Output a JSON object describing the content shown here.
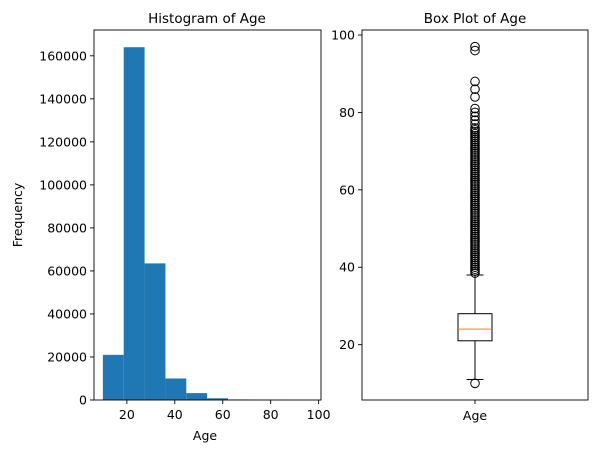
{
  "colors": {
    "bar": "#1f77b4",
    "median": "#ff7f0e",
    "axis": "#000000",
    "outlier": "#000000"
  },
  "chart_data": [
    {
      "type": "bar",
      "title": "Histogram of Age",
      "xlabel": "Age",
      "ylabel": "Frequency",
      "xlim": [
        6.3,
        101.0
      ],
      "ylim": [
        0,
        172000
      ],
      "xticks": [
        20,
        40,
        60,
        80,
        100
      ],
      "yticks": [
        0,
        20000,
        40000,
        60000,
        80000,
        100000,
        120000,
        140000,
        160000
      ],
      "bin_edges": [
        10,
        18.7,
        27.4,
        36.1,
        44.8,
        53.5,
        62.2,
        70.9,
        79.6,
        88.3,
        97
      ],
      "values": [
        21000,
        164000,
        63500,
        10000,
        3200,
        800,
        250,
        100,
        50,
        20
      ],
      "grid": false,
      "legend": "none"
    },
    {
      "type": "box",
      "title": "Box Plot of Age",
      "xlabel": "",
      "ylabel": "",
      "category": "Age",
      "ylim": [
        5.7,
        101.3
      ],
      "yticks": [
        20,
        40,
        60,
        80,
        100
      ],
      "whisker_low": 11,
      "q1": 21,
      "median": 24,
      "q3": 28,
      "whisker_high": 38,
      "outliers": [
        10,
        38.5,
        39,
        39.5,
        40,
        40.5,
        41,
        41.5,
        42,
        42.5,
        43,
        43.5,
        44,
        44.5,
        45,
        45.5,
        46,
        46.5,
        47,
        47.5,
        48,
        48.5,
        49,
        49.5,
        50,
        50.5,
        51,
        51.5,
        52,
        52.5,
        53,
        53.5,
        54,
        54.5,
        55,
        55.5,
        56,
        56.5,
        57,
        57.5,
        58,
        58.5,
        59,
        59.5,
        60,
        60.5,
        61,
        61.5,
        62,
        62.5,
        63,
        63.5,
        64,
        64.5,
        65,
        65.5,
        66,
        66.5,
        67,
        67.5,
        68,
        68.5,
        69,
        69.5,
        70,
        70.5,
        71,
        71.5,
        72,
        72.5,
        73,
        73.5,
        74,
        74.5,
        75,
        75.5,
        76,
        77,
        78,
        79,
        80,
        81,
        84,
        86,
        88,
        96,
        97
      ],
      "grid": false,
      "legend": "none"
    }
  ]
}
